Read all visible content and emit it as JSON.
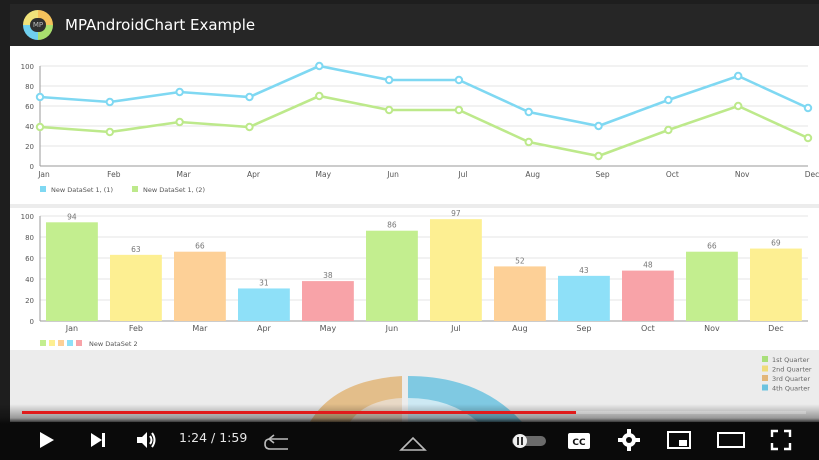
{
  "app": {
    "title": "MPAndroidChart Example"
  },
  "months": [
    "Jan",
    "Feb",
    "Mar",
    "Apr",
    "May",
    "Jun",
    "Jul",
    "Aug",
    "Sep",
    "Oct",
    "Nov",
    "Dec"
  ],
  "chart_data": [
    {
      "type": "line",
      "x": [
        "Jan",
        "Feb",
        "Mar",
        "Apr",
        "May",
        "Jun",
        "Jul",
        "Aug",
        "Sep",
        "Oct",
        "Nov",
        "Dec"
      ],
      "yticks": [
        "0",
        "20",
        "40",
        "60",
        "80",
        "100"
      ],
      "ylim": [
        0,
        100
      ],
      "grid": true,
      "legend_position": "bottom-left",
      "series": [
        {
          "name": "New DataSet 1, (1)",
          "color": "#7fd8f2",
          "values": [
            69,
            64,
            74,
            69,
            100,
            86,
            86,
            54,
            40,
            66,
            90,
            58
          ]
        },
        {
          "name": "New DataSet 1, (2)",
          "color": "#bde98b",
          "values": [
            39,
            34,
            44,
            39,
            70,
            56,
            56,
            24,
            10,
            36,
            60,
            28
          ]
        }
      ]
    },
    {
      "type": "bar",
      "categories": [
        "Jan",
        "Feb",
        "Mar",
        "Apr",
        "May",
        "Jun",
        "Jul",
        "Aug",
        "Sep",
        "Oct",
        "Nov",
        "Dec"
      ],
      "values": [
        94,
        63,
        66,
        31,
        38,
        86,
        97,
        52,
        43,
        48,
        66,
        69
      ],
      "yticks": [
        "0",
        "20",
        "40",
        "60",
        "80",
        "100"
      ],
      "ylim": [
        0,
        100
      ],
      "grid": true,
      "legend_position": "bottom-left",
      "legend": "New DataSet 2",
      "colors": [
        "#c3ee8f",
        "#fdef92",
        "#fdd097",
        "#8ee0f8",
        "#f8a3a8",
        "#c3ee8f",
        "#fdef92",
        "#fdd097",
        "#8ee0f8",
        "#f8a3a8",
        "#c3ee8f",
        "#fdef92"
      ],
      "legend_swatches": [
        "#c3ee8f",
        "#fdef92",
        "#fdd097",
        "#8ee0f8",
        "#f8a3a8"
      ]
    },
    {
      "type": "pie",
      "legend_position": "right",
      "series": [
        {
          "name": "1st Quarter",
          "color": "#a9df7a"
        },
        {
          "name": "2nd Quarter",
          "color": "#efdb7a"
        },
        {
          "name": "3rd Quarter",
          "color": "#e2b679"
        },
        {
          "name": "4th Quarter",
          "color": "#6cc3e0"
        }
      ]
    }
  ],
  "player": {
    "time": "1:24 / 1:59",
    "progress": 0.706,
    "icons": [
      "play-icon",
      "next-icon",
      "volume-icon",
      "back-icon",
      "home-icon",
      "recents-icon",
      "autoplay-toggle",
      "subtitles-icon",
      "settings-icon",
      "miniplayer-icon",
      "theater-icon",
      "fullscreen-icon"
    ]
  }
}
